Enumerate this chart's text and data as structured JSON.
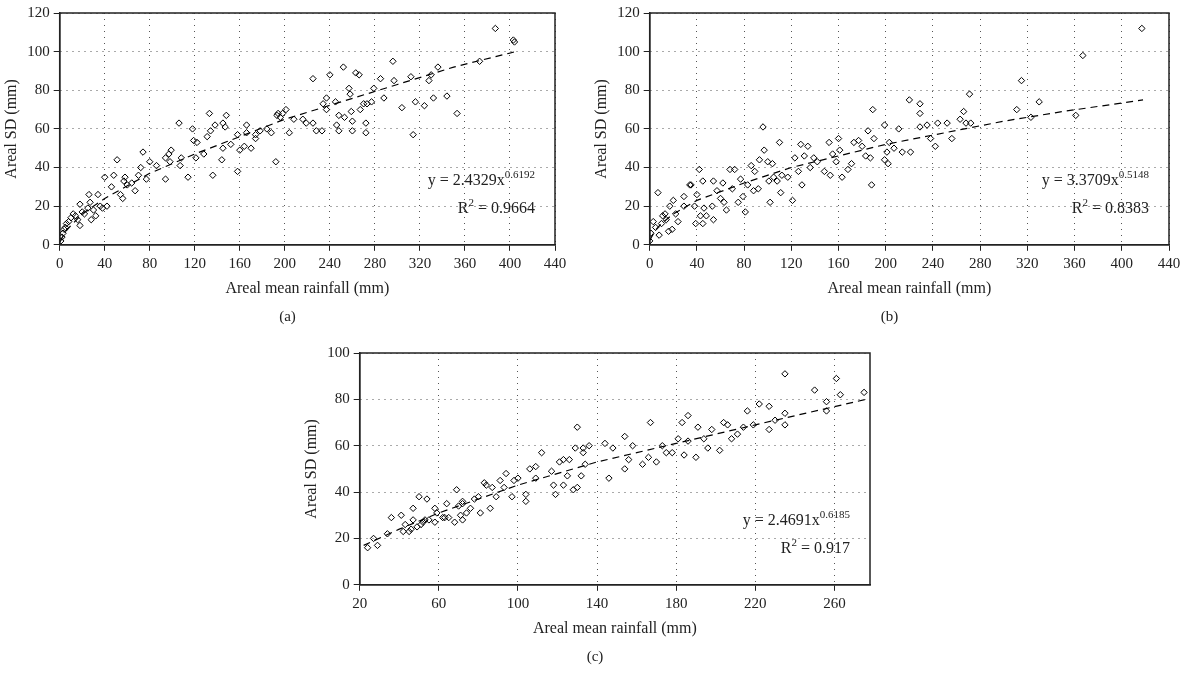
{
  "chart_data": [
    {
      "type": "scatter",
      "xlabel": "Areal mean rainfall (mm)",
      "ylabel": "Areal SD (mm)",
      "xlim": [
        0,
        440
      ],
      "xticks": [
        0,
        40,
        80,
        120,
        160,
        200,
        240,
        280,
        320,
        360,
        400,
        440
      ],
      "ylim": [
        0,
        120
      ],
      "yticks": [
        0,
        20,
        40,
        60,
        80,
        100,
        120
      ],
      "grid": true,
      "marker": "diamond",
      "annotations": [
        "y = 2.4329x$^{0.6192}$",
        "R$^{2}$ = 0.9664",
        "(a)"
      ],
      "series": [
        {
          "color": "#000000",
          "x": [
            1,
            2,
            3,
            4,
            5,
            6,
            8,
            10,
            12,
            14,
            16,
            18,
            18,
            20,
            22,
            25,
            26,
            27,
            28,
            30,
            32,
            34,
            36,
            38,
            40,
            42,
            46,
            48,
            51,
            54,
            56,
            57,
            58,
            60,
            64,
            67,
            70,
            72,
            74,
            77,
            80,
            86,
            94,
            94,
            97,
            99,
            98,
            106,
            107,
            108,
            114,
            118,
            119,
            121,
            122,
            128,
            131,
            133,
            134,
            136,
            138,
            144,
            145,
            145,
            147,
            148,
            152,
            158,
            158,
            160,
            164,
            166,
            166,
            170,
            174,
            174,
            178,
            184,
            188,
            192,
            193,
            194,
            196,
            198,
            201,
            204,
            208,
            216,
            219,
            225,
            225,
            228,
            233,
            234,
            237,
            237,
            240,
            245,
            246,
            248,
            248,
            252,
            253,
            257,
            258,
            259,
            260,
            260,
            263,
            266,
            267,
            270,
            272,
            272,
            273,
            277,
            279,
            285,
            288,
            296,
            297,
            304,
            312,
            314,
            316,
            324,
            328,
            330,
            332,
            336,
            344,
            353,
            373,
            387,
            403,
            404
          ],
          "values": [
            2,
            4,
            6,
            8,
            9,
            11,
            12,
            14,
            16,
            15,
            13,
            21,
            10,
            17,
            16,
            19,
            26,
            22,
            13,
            18,
            15,
            26,
            20,
            19,
            35,
            20,
            30,
            36,
            44,
            26,
            24,
            33,
            35,
            31,
            32,
            28,
            36,
            40,
            48,
            34,
            43,
            41,
            45,
            34,
            47,
            49,
            43,
            63,
            41,
            45,
            35,
            60,
            54,
            45,
            53,
            47,
            56,
            68,
            59,
            36,
            62,
            44,
            50,
            63,
            61,
            67,
            52,
            57,
            38,
            49,
            51,
            58,
            62,
            50,
            55,
            57,
            59,
            60,
            58,
            43,
            67,
            68,
            66,
            68,
            70,
            58,
            65,
            65,
            63,
            86,
            63,
            59,
            59,
            73,
            76,
            70,
            88,
            74,
            62,
            67,
            59,
            92,
            66,
            81,
            78,
            69,
            64,
            59,
            89,
            88,
            70,
            73,
            63,
            58,
            73,
            74,
            81,
            86,
            76,
            95,
            85,
            71,
            87,
            57,
            74,
            72,
            85,
            88,
            76,
            92,
            77,
            68,
            95,
            112,
            106,
            105
          ]
        },
        {
          "type": "line",
          "color": "#000000",
          "line_style": "dashed",
          "marker": "none",
          "x": [
            0.5,
            1,
            5,
            10,
            20,
            40,
            80,
            120,
            160,
            200,
            250,
            300,
            350,
            405
          ],
          "values": [
            1.6,
            2.4,
            6.6,
            10,
            16,
            24,
            37,
            47,
            56,
            65,
            74,
            83,
            92,
            100
          ]
        }
      ]
    },
    {
      "type": "scatter",
      "xlabel": "Areal mean rainfall (mm)",
      "ylabel": "Areal SD (mm)",
      "xlim": [
        0,
        440
      ],
      "xticks": [
        0,
        40,
        80,
        120,
        160,
        200,
        240,
        280,
        320,
        360,
        400,
        440
      ],
      "ylim": [
        0,
        120
      ],
      "yticks": [
        0,
        20,
        40,
        60,
        80,
        100,
        120
      ],
      "grid": true,
      "marker": "diamond",
      "annotations": [
        "y = 3.3709x$^{0.5148}$",
        "R$^{2}$ = 0.8383",
        "(b)"
      ],
      "series": [
        {
          "color": "#000000",
          "x": [
            0,
            1,
            3,
            5,
            7,
            8,
            10,
            11,
            13,
            14,
            16,
            17,
            19,
            20,
            22,
            24,
            29,
            29,
            34,
            35,
            38,
            39,
            40,
            42,
            43,
            45,
            45,
            46,
            48,
            53,
            54,
            54,
            57,
            60,
            62,
            63,
            65,
            68,
            70,
            72,
            75,
            77,
            79,
            81,
            83,
            86,
            88,
            89,
            92,
            93,
            96,
            97,
            100,
            101,
            102,
            104,
            105,
            108,
            110,
            111,
            112,
            117,
            121,
            123,
            126,
            128,
            129,
            131,
            134,
            136,
            139,
            142,
            148,
            152,
            153,
            155,
            158,
            160,
            161,
            163,
            168,
            171,
            173,
            177,
            180,
            185,
            189,
            183,
            187,
            188,
            190,
            199,
            199,
            201,
            202,
            203,
            207,
            211,
            214,
            220,
            221,
            229,
            229,
            229,
            235,
            238,
            242,
            244,
            252,
            256,
            263,
            266,
            268,
            271,
            272,
            311,
            315,
            323,
            330,
            361,
            367,
            417
          ],
          "values": [
            2,
            6,
            12,
            9,
            27,
            5,
            11,
            15,
            16,
            13,
            7,
            20,
            8,
            23,
            16,
            12,
            25,
            20,
            31,
            31,
            20,
            11,
            26,
            39,
            15,
            11,
            33,
            19,
            15,
            20,
            33,
            13,
            28,
            24,
            32,
            22,
            18,
            39,
            29,
            39,
            22,
            34,
            25,
            17,
            31,
            41,
            28,
            38,
            29,
            44,
            61,
            49,
            43,
            33,
            22,
            42,
            35,
            33,
            53,
            27,
            36,
            35,
            23,
            45,
            38,
            52,
            31,
            46,
            51,
            40,
            45,
            43,
            38,
            53,
            36,
            47,
            43,
            55,
            49,
            35,
            39,
            42,
            53,
            54,
            51,
            59,
            70,
            46,
            45,
            31,
            55,
            62,
            44,
            48,
            42,
            53,
            50,
            60,
            48,
            75,
            48,
            68,
            73,
            61,
            62,
            55,
            51,
            63,
            63,
            55,
            65,
            69,
            63,
            78,
            63,
            70,
            85,
            66,
            74,
            67,
            98,
            112
          ]
        },
        {
          "type": "line",
          "color": "#000000",
          "line_style": "dashed",
          "marker": "none",
          "x": [
            0.5,
            1,
            5,
            10,
            20,
            40,
            80,
            120,
            160,
            200,
            250,
            300,
            350,
            418
          ],
          "values": [
            2.4,
            3.4,
            7.7,
            11,
            16,
            23,
            32,
            40,
            46,
            52,
            58,
            64,
            69,
            75
          ]
        }
      ]
    },
    {
      "type": "scatter",
      "xlabel": "Areal mean rainfall (mm)",
      "ylabel": "Areal SD (mm)",
      "xlim": [
        20,
        278
      ],
      "xticks": [
        20,
        60,
        100,
        140,
        180,
        220,
        260
      ],
      "ylim": [
        0,
        100
      ],
      "yticks": [
        0,
        20,
        40,
        60,
        80,
        100
      ],
      "grid": true,
      "marker": "diamond",
      "annotations": [
        "y = 2.4691x$^{0.6185}$",
        "R$^{2}$ = 0.917",
        "(c)"
      ],
      "series": [
        {
          "color": "#000000",
          "x": [
            24,
            27,
            29,
            34,
            36,
            41,
            42,
            43,
            45,
            46,
            47,
            47,
            49,
            50,
            51,
            52,
            53,
            54,
            55,
            58,
            58,
            59,
            62,
            63,
            64,
            65,
            68,
            69,
            70,
            71,
            72,
            72,
            72,
            74,
            76,
            78,
            80,
            81,
            83,
            84,
            86,
            87,
            89,
            91,
            93,
            94,
            97,
            98,
            100,
            104,
            104,
            106,
            109,
            109,
            112,
            117,
            118,
            119,
            121,
            123,
            125,
            126,
            128,
            130,
            130,
            132,
            133,
            123,
            129,
            133,
            134,
            136,
            144,
            146,
            148,
            154,
            154,
            156,
            158,
            163,
            166,
            167,
            170,
            173,
            175,
            178,
            181,
            183,
            184,
            186,
            186,
            190,
            191,
            194,
            196,
            198,
            202,
            204,
            206,
            208,
            211,
            214,
            216,
            219,
            222,
            227,
            227,
            230,
            235,
            235,
            235,
            250,
            256,
            256,
            261,
            263,
            275
          ],
          "values": [
            16,
            20,
            17,
            22,
            29,
            30,
            23,
            26,
            23,
            24,
            28,
            33,
            25,
            38,
            26,
            27,
            28,
            37,
            28,
            27,
            33,
            31,
            29,
            29,
            35,
            29,
            27,
            41,
            34,
            30,
            35,
            28,
            36,
            31,
            33,
            37,
            38,
            31,
            44,
            43,
            33,
            42,
            38,
            45,
            42,
            48,
            38,
            45,
            46,
            36,
            39,
            50,
            51,
            46,
            57,
            49,
            43,
            39,
            53,
            43,
            47,
            54,
            41,
            42,
            68,
            47,
            59,
            54,
            59,
            57,
            52,
            60,
            61,
            46,
            59,
            64,
            50,
            54,
            60,
            52,
            55,
            70,
            53,
            60,
            57,
            57,
            63,
            70,
            56,
            73,
            62,
            55,
            68,
            63,
            59,
            67,
            58,
            70,
            69,
            63,
            65,
            68,
            75,
            69,
            78,
            77,
            67,
            71,
            69,
            91,
            74,
            84,
            75,
            79,
            89,
            82,
            83
          ]
        },
        {
          "type": "line",
          "color": "#000000",
          "line_style": "dashed",
          "marker": "none",
          "x": [
            22,
            40,
            60,
            100,
            140,
            180,
            220,
            276
          ],
          "values": [
            17,
            24,
            31,
            43,
            53,
            61,
            69,
            80
          ]
        }
      ]
    }
  ]
}
